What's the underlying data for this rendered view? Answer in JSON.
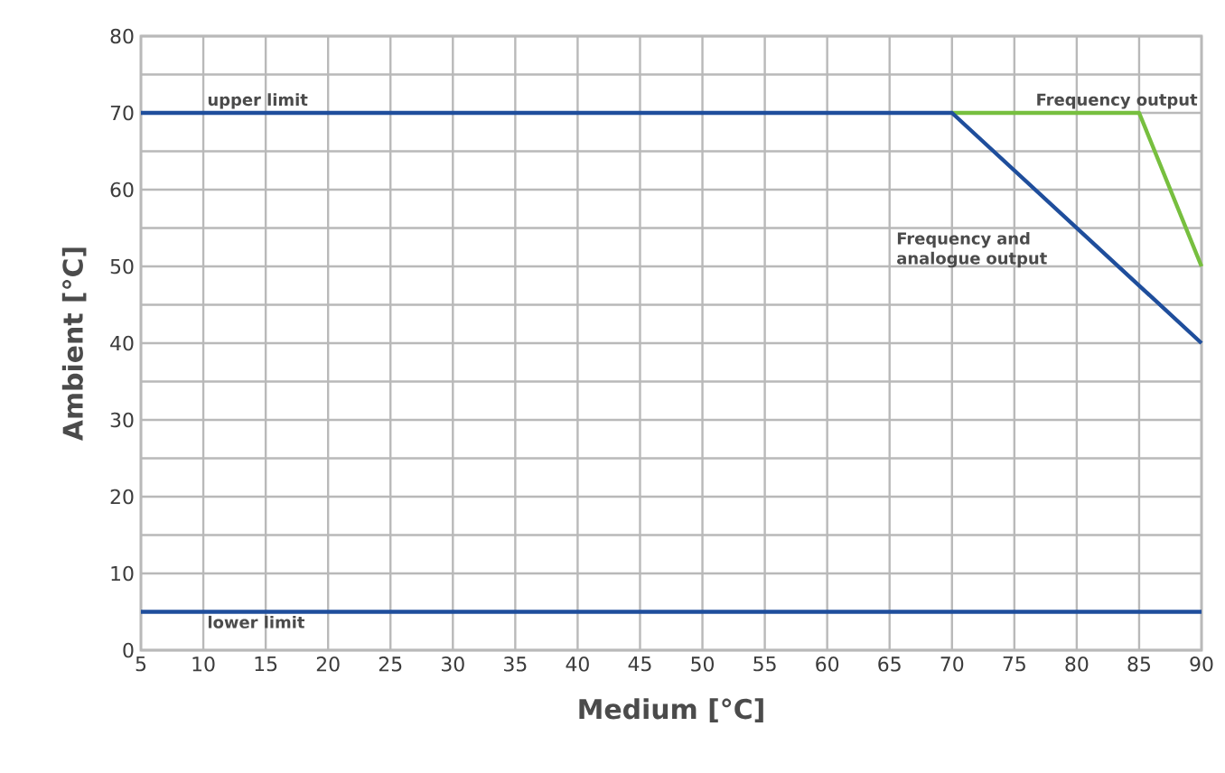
{
  "chart_data": {
    "type": "line",
    "xlabel": "Medium [°C]",
    "ylabel": "Ambient [°C]",
    "xlim": [
      5,
      90
    ],
    "xticks": [
      5,
      10,
      15,
      20,
      25,
      30,
      35,
      40,
      45,
      50,
      55,
      60,
      65,
      70,
      75,
      80,
      85,
      90
    ],
    "ylim": [
      0,
      80
    ],
    "yticks": [
      0,
      {
        "value": 5,
        "label": null
      },
      10,
      {
        "value": 15,
        "label": null
      },
      20,
      {
        "value": 25,
        "label": null
      },
      30,
      {
        "value": 35,
        "label": null
      },
      40,
      {
        "value": 45,
        "label": null
      },
      50,
      {
        "value": 55,
        "label": null
      },
      60,
      {
        "value": 65,
        "label": null
      },
      70,
      {
        "value": 75,
        "label": null
      },
      80
    ],
    "grid": true,
    "legend": false,
    "marker": "none",
    "line_style": "solid",
    "series": [
      {
        "name": "Frequency output",
        "color": "#77bf3f",
        "x": [
          70,
          85,
          90
        ],
        "values": [
          70,
          70,
          50
        ]
      },
      {
        "name": "Frequency and analogue output",
        "color": "#1f4e9c",
        "x": [
          5,
          70,
          90
        ],
        "values": [
          70,
          70,
          40
        ]
      }
    ],
    "ref_lines": [
      {
        "axis": "y",
        "value": 5,
        "label": "lower limit",
        "color": "#1f4e9c",
        "line_style": "solid"
      }
    ],
    "annotations": [
      {
        "text": "upper limit",
        "x": 10,
        "y": 70
      }
    ]
  }
}
